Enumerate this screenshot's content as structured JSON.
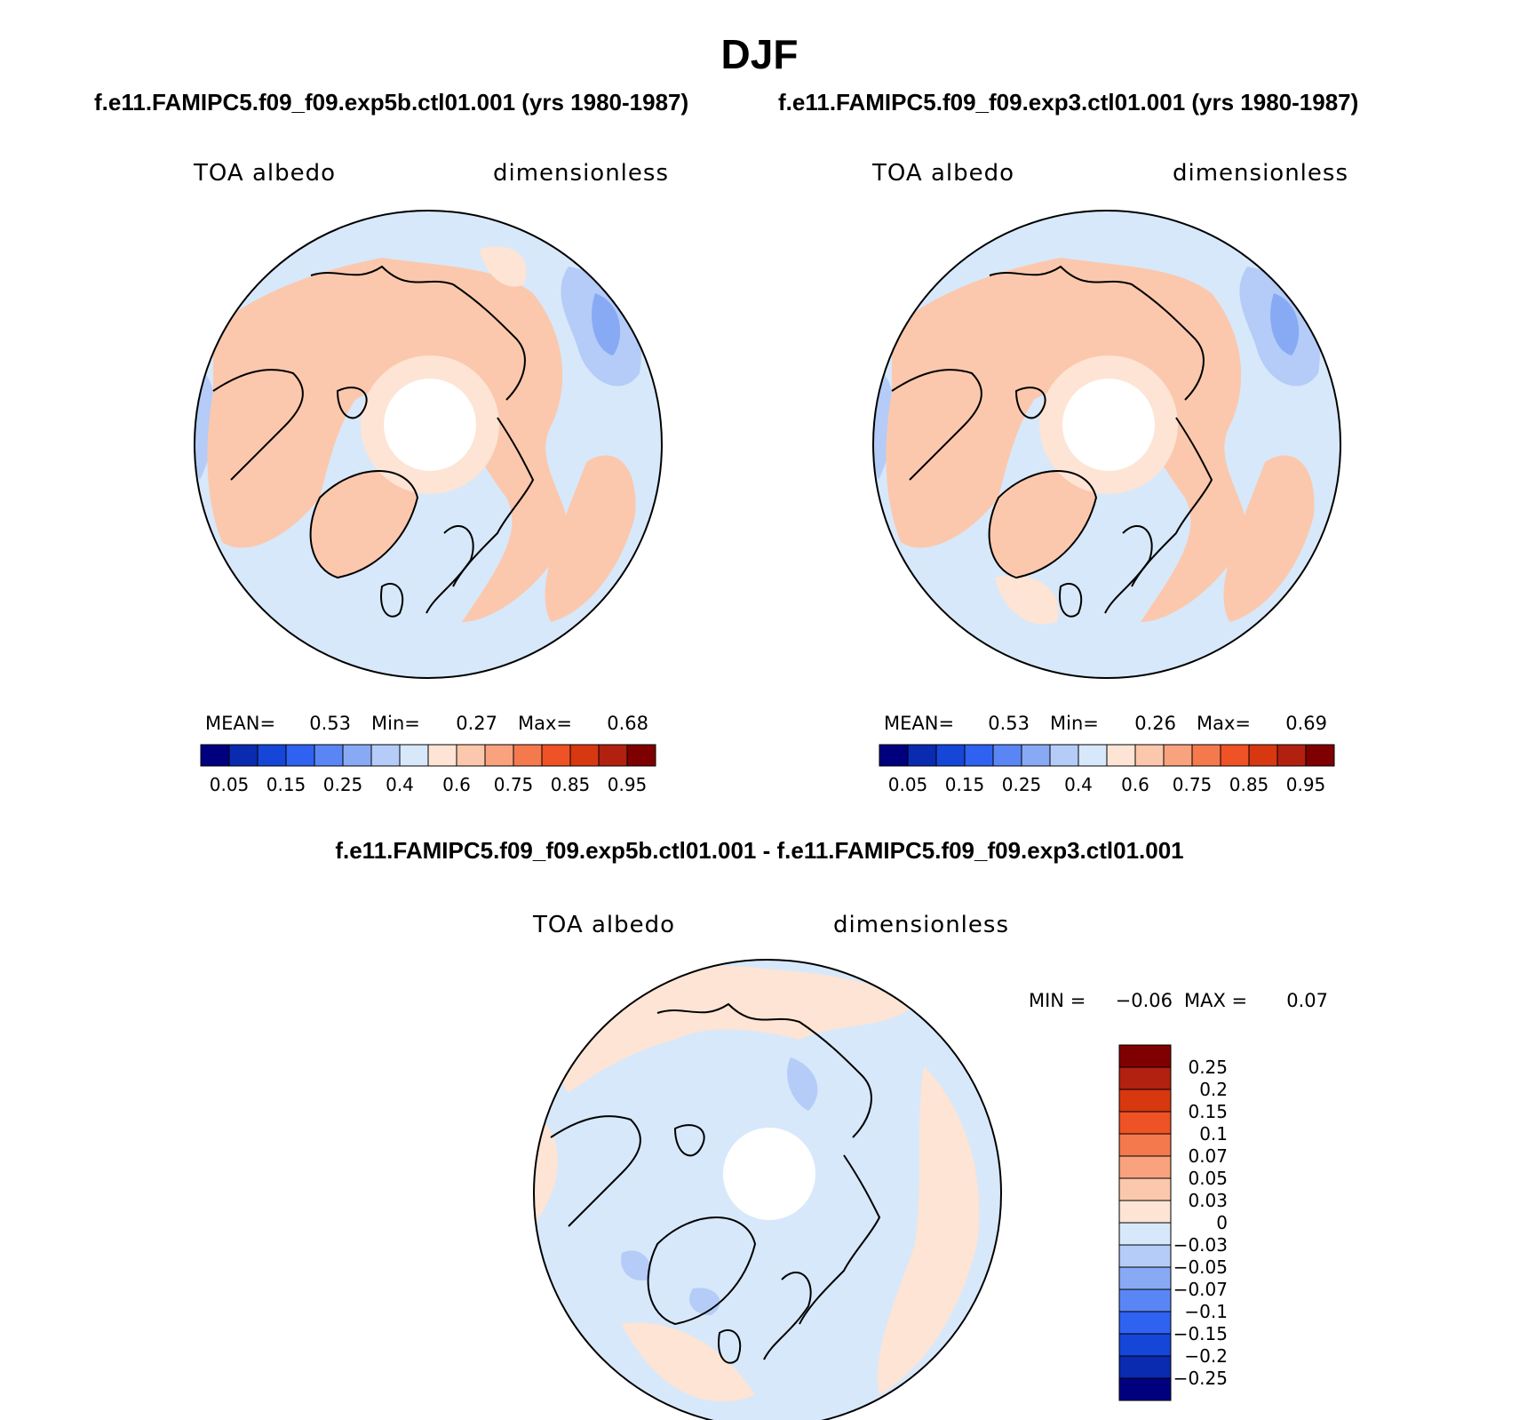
{
  "title": "DJF",
  "panels": [
    {
      "case_title": "f.e11.FAMIPC5.f09_f09.exp5b.ctl01.001 (yrs 1980-1987)",
      "left_label": "TOA albedo",
      "right_label": "dimensionless",
      "stats": {
        "mean_label": "MEAN=",
        "mean": "0.53",
        "min_label": "Min=",
        "min": "0.27",
        "max_label": "Max=",
        "max": "0.68"
      }
    },
    {
      "case_title": "f.e11.FAMIPC5.f09_f09.exp3.ctl01.001 (yrs 1980-1987)",
      "left_label": "TOA albedo",
      "right_label": "dimensionless",
      "stats": {
        "mean_label": "MEAN=",
        "mean": "0.53",
        "min_label": "Min=",
        "min": "0.26",
        "max_label": "Max=",
        "max": "0.69"
      }
    }
  ],
  "diff_panel": {
    "case_title": "f.e11.FAMIPC5.f09_f09.exp5b.ctl01.001 - f.e11.FAMIPC5.f09_f09.exp3.ctl01.001",
    "left_label": "TOA albedo",
    "right_label": "dimensionless",
    "stats": {
      "min_label": "MIN =",
      "min": "−0.06",
      "max_label": "MAX =",
      "max": "0.07"
    }
  },
  "colorbar_abs": {
    "colors": [
      "#00007f",
      "#0a2ab0",
      "#1646d8",
      "#2f62f0",
      "#5a86f5",
      "#88aaf5",
      "#b4ccf7",
      "#d7e8fa",
      "#fde4d4",
      "#fbc8ad",
      "#f8a27e",
      "#f47a4e",
      "#ef5224",
      "#d73810",
      "#b22010",
      "#7f0000"
    ],
    "labels": [
      "0.05",
      "0.15",
      "0.25",
      "0.4",
      "0.6",
      "0.75",
      "0.85",
      "0.95"
    ]
  },
  "colorbar_diff": {
    "colors": [
      "#7f0000",
      "#b22010",
      "#d73810",
      "#ef5224",
      "#f47a4e",
      "#f8a27e",
      "#fbc8ad",
      "#fde4d4",
      "#d7e8fa",
      "#b4ccf7",
      "#88aaf5",
      "#5a86f5",
      "#2f62f0",
      "#1646d8",
      "#0a2ab0",
      "#00007f"
    ],
    "labels": [
      "0.25",
      "0.2",
      "0.15",
      "0.1",
      "0.07",
      "0.05",
      "0.03",
      "0",
      "−0.03",
      "−0.05",
      "−0.07",
      "−0.1",
      "−0.15",
      "−0.2",
      "−0.25"
    ]
  },
  "map_colors": {
    "light_blue": "#d7e8fa",
    "mid_blue": "#b4ccf7",
    "blue": "#88aaf5",
    "peach": "#fde4d4",
    "salmon": "#fbc8ad",
    "polar_hole": "#ffffff"
  }
}
